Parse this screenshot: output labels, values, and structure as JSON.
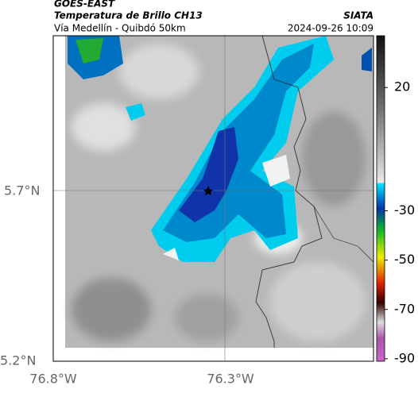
{
  "header": {
    "source": "GOES-EAST",
    "title": "Temperatura de Brillo CH13",
    "org": "SIATA",
    "subtitle": "Vía Medellín - Quibdó 50km",
    "datetime": "2024-09-26 10:09"
  },
  "axes": {
    "lat_labels": [
      "5.7°N",
      "5.2°N"
    ],
    "lon_labels": [
      "76.8°W",
      "76.3°W"
    ]
  },
  "colorbar": {
    "limits": [
      41,
      -91
    ],
    "ticks": [
      20,
      -30,
      -50,
      -70,
      -90
    ]
  }
}
